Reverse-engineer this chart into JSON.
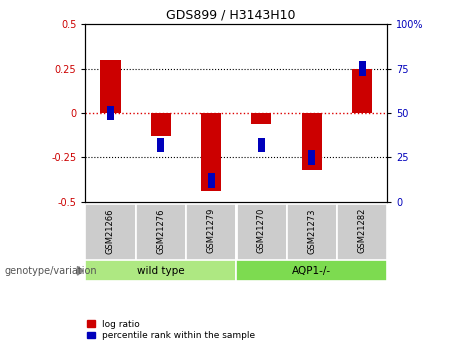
{
  "title": "GDS899 / H3143H10",
  "samples": [
    "GSM21266",
    "GSM21276",
    "GSM21279",
    "GSM21270",
    "GSM21273",
    "GSM21282"
  ],
  "log_ratios": [
    0.3,
    -0.13,
    -0.44,
    -0.06,
    -0.32,
    0.245
  ],
  "percentile_rank_values": [
    50,
    32,
    12,
    32,
    25,
    75
  ],
  "ylim_left": [
    -0.5,
    0.5
  ],
  "ylim_right": [
    0,
    100
  ],
  "yticks_left": [
    -0.5,
    -0.25,
    0,
    0.25,
    0.5
  ],
  "yticks_right": [
    0,
    25,
    50,
    75,
    100
  ],
  "groups": [
    {
      "label": "wild type",
      "start": 0,
      "end": 2,
      "color": "#aee882"
    },
    {
      "label": "AQP1-/-",
      "start": 3,
      "end": 5,
      "color": "#7ddb50"
    }
  ],
  "group_label_prefix": "genotype/variation",
  "bar_color_red": "#cc0000",
  "bar_color_blue": "#0000bb",
  "tick_label_color_left": "#cc0000",
  "tick_label_color_right": "#0000bb",
  "zero_line_color": "#dd0000",
  "tick_box_color": "#cccccc",
  "bar_width": 0.4,
  "blue_marker_size": 0.08
}
